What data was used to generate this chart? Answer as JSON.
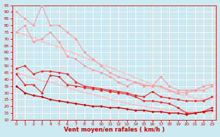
{
  "xlabel": "Vent moyen/en rafales ( km/h )",
  "background_color": "#cce8f0",
  "grid_color": "#ffffff",
  "x_values": [
    0,
    1,
    2,
    3,
    4,
    5,
    6,
    7,
    8,
    9,
    10,
    11,
    12,
    13,
    14,
    15,
    16,
    17,
    18,
    19,
    20,
    21,
    22,
    23
  ],
  "series": [
    {
      "name": "pink_top",
      "color": "#ff9999",
      "linewidth": 0.8,
      "marker": "D",
      "markersize": 1.8,
      "y": [
        90,
        85,
        80,
        95,
        80,
        80,
        75,
        70,
        60,
        55,
        50,
        45,
        42,
        40,
        38,
        35,
        35,
        42,
        35,
        32,
        32,
        32,
        32,
        35
      ]
    },
    {
      "name": "pink_mid",
      "color": "#ff9999",
      "linewidth": 0.8,
      "marker": "D",
      "markersize": 1.8,
      "y": [
        75,
        80,
        68,
        70,
        75,
        68,
        57,
        55,
        50,
        47,
        45,
        42,
        38,
        35,
        38,
        36,
        35,
        35,
        32,
        30,
        30,
        32,
        35,
        36
      ]
    },
    {
      "name": "light_trend_upper",
      "color": "#ffbbbb",
      "linewidth": 1.0,
      "marker": null,
      "markersize": 0,
      "y": [
        75,
        73,
        71,
        68,
        66,
        64,
        61,
        59,
        56,
        54,
        51,
        49,
        46,
        44,
        41,
        39,
        36,
        34,
        31,
        29,
        28,
        26,
        25,
        25
      ]
    },
    {
      "name": "light_trend_lower",
      "color": "#ffbbbb",
      "linewidth": 1.0,
      "marker": null,
      "markersize": 0,
      "y": [
        45,
        43,
        41,
        39,
        38,
        36,
        34,
        32,
        30,
        29,
        27,
        25,
        24,
        22,
        21,
        20,
        19,
        18,
        17,
        17,
        16,
        16,
        15,
        15
      ]
    },
    {
      "name": "red_upper",
      "color": "#ee2222",
      "linewidth": 0.8,
      "marker": "D",
      "markersize": 1.8,
      "y": [
        48,
        50,
        44,
        46,
        46,
        45,
        44,
        38,
        35,
        34,
        33,
        32,
        31,
        30,
        28,
        27,
        31,
        27,
        26,
        25,
        24,
        24,
        24,
        27
      ]
    },
    {
      "name": "red_lower",
      "color": "#ee2222",
      "linewidth": 0.8,
      "marker": "D",
      "markersize": 1.8,
      "y": [
        44,
        36,
        36,
        30,
        43,
        42,
        36,
        35,
        34,
        33,
        32,
        31,
        30,
        29,
        27,
        24,
        24,
        23,
        22,
        19,
        15,
        15,
        16,
        19
      ]
    },
    {
      "name": "red_bottom",
      "color": "#cc0000",
      "linewidth": 1.0,
      "marker": "D",
      "markersize": 1.8,
      "y": [
        35,
        30,
        28,
        27,
        25,
        24,
        23,
        22,
        21,
        20,
        20,
        19,
        19,
        18,
        17,
        17,
        16,
        16,
        15,
        15,
        14,
        15,
        16,
        17
      ]
    }
  ],
  "ylim": [
    10,
    95
  ],
  "xlim": [
    -0.5,
    23.5
  ],
  "yticks": [
    10,
    15,
    20,
    25,
    30,
    35,
    40,
    45,
    50,
    55,
    60,
    65,
    70,
    75,
    80,
    85,
    90,
    95
  ],
  "xticks": [
    0,
    1,
    2,
    3,
    4,
    5,
    6,
    7,
    8,
    9,
    10,
    11,
    12,
    13,
    14,
    15,
    16,
    17,
    18,
    19,
    20,
    21,
    22,
    23
  ],
  "tick_color": "#cc0000",
  "tick_fontsize": 4.5,
  "xlabel_fontsize": 6.0,
  "xlabel_color": "#cc0000",
  "xlabel_fontweight": "bold",
  "arrow_color": "#cc0000"
}
